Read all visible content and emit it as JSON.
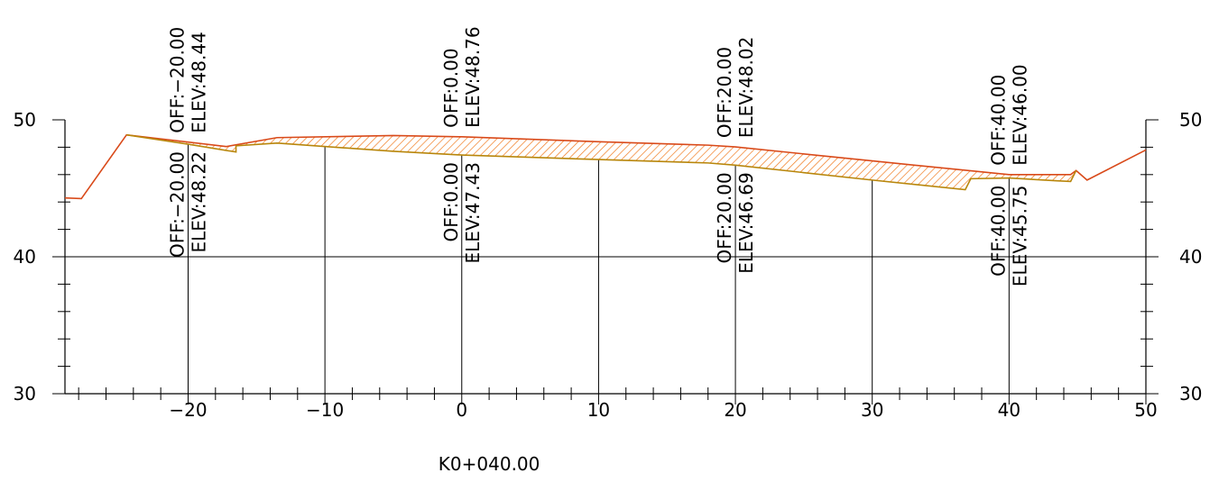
{
  "chart_data": {
    "type": "line",
    "title": "",
    "station_label": "K0+040.00",
    "xlim": [
      -29,
      50
    ],
    "ylim": [
      30,
      50
    ],
    "x_ticks": [
      -20,
      -10,
      0,
      10,
      20,
      30,
      40,
      50
    ],
    "x_tick_labels": [
      "−20",
      "−10",
      "0",
      "10",
      "20",
      "30",
      "40",
      "50"
    ],
    "y_ticks": [
      30,
      40,
      50
    ],
    "y_tick_labels": [
      "30",
      "40",
      "50"
    ],
    "grid": {
      "x_lines": [
        -20,
        -10,
        0,
        10,
        20,
        30,
        40
      ],
      "y_lines": [
        40
      ]
    },
    "series": [
      {
        "key": "existing-ground",
        "color": "#d94a1a",
        "x": [
          -29,
          -27.8,
          -24.5,
          -17.2,
          -13.5,
          -5,
          0,
          10,
          18,
          20,
          30,
          40,
          44.5,
          44.9,
          45.7,
          50
        ],
        "y": [
          44.3,
          44.25,
          48.9,
          48.05,
          48.7,
          48.85,
          48.76,
          48.4,
          48.15,
          48.02,
          47.0,
          46.0,
          46.0,
          46.3,
          45.6,
          47.8
        ]
      },
      {
        "key": "design-subgrade",
        "color": "#b8860b",
        "x": [
          -24.5,
          -20,
          -16.5,
          -16.5,
          -13.5,
          -5,
          0,
          10,
          18,
          20,
          30,
          36.8,
          37.2,
          40,
          43.5,
          44.5,
          44.9
        ],
        "y": [
          48.9,
          48.22,
          47.65,
          48.1,
          48.3,
          47.7,
          47.43,
          47.1,
          46.85,
          46.69,
          45.6,
          44.9,
          45.7,
          45.75,
          45.55,
          45.5,
          46.3
        ]
      }
    ],
    "top_annotations": [
      {
        "x": -20,
        "off": "OFF:−20.00",
        "elev": "ELEV:48.44"
      },
      {
        "x": 0,
        "off": "OFF:0.00",
        "elev": "ELEV:48.76"
      },
      {
        "x": 20,
        "off": "OFF:20.00",
        "elev": "ELEV:48.02"
      },
      {
        "x": 40,
        "off": "OFF:40.00",
        "elev": "ELEV:46.00"
      }
    ],
    "bottom_annotations": [
      {
        "x": -20,
        "off": "OFF:−20.00",
        "elev": "ELEV:48.22"
      },
      {
        "x": 0,
        "off": "OFF:0.00",
        "elev": "ELEV:47.43"
      },
      {
        "x": 20,
        "off": "OFF:20.00",
        "elev": "ELEV:46.69"
      },
      {
        "x": 40,
        "off": "OFF:40.00",
        "elev": "ELEV:45.75"
      }
    ],
    "hatch_color": "#f07a1e"
  }
}
